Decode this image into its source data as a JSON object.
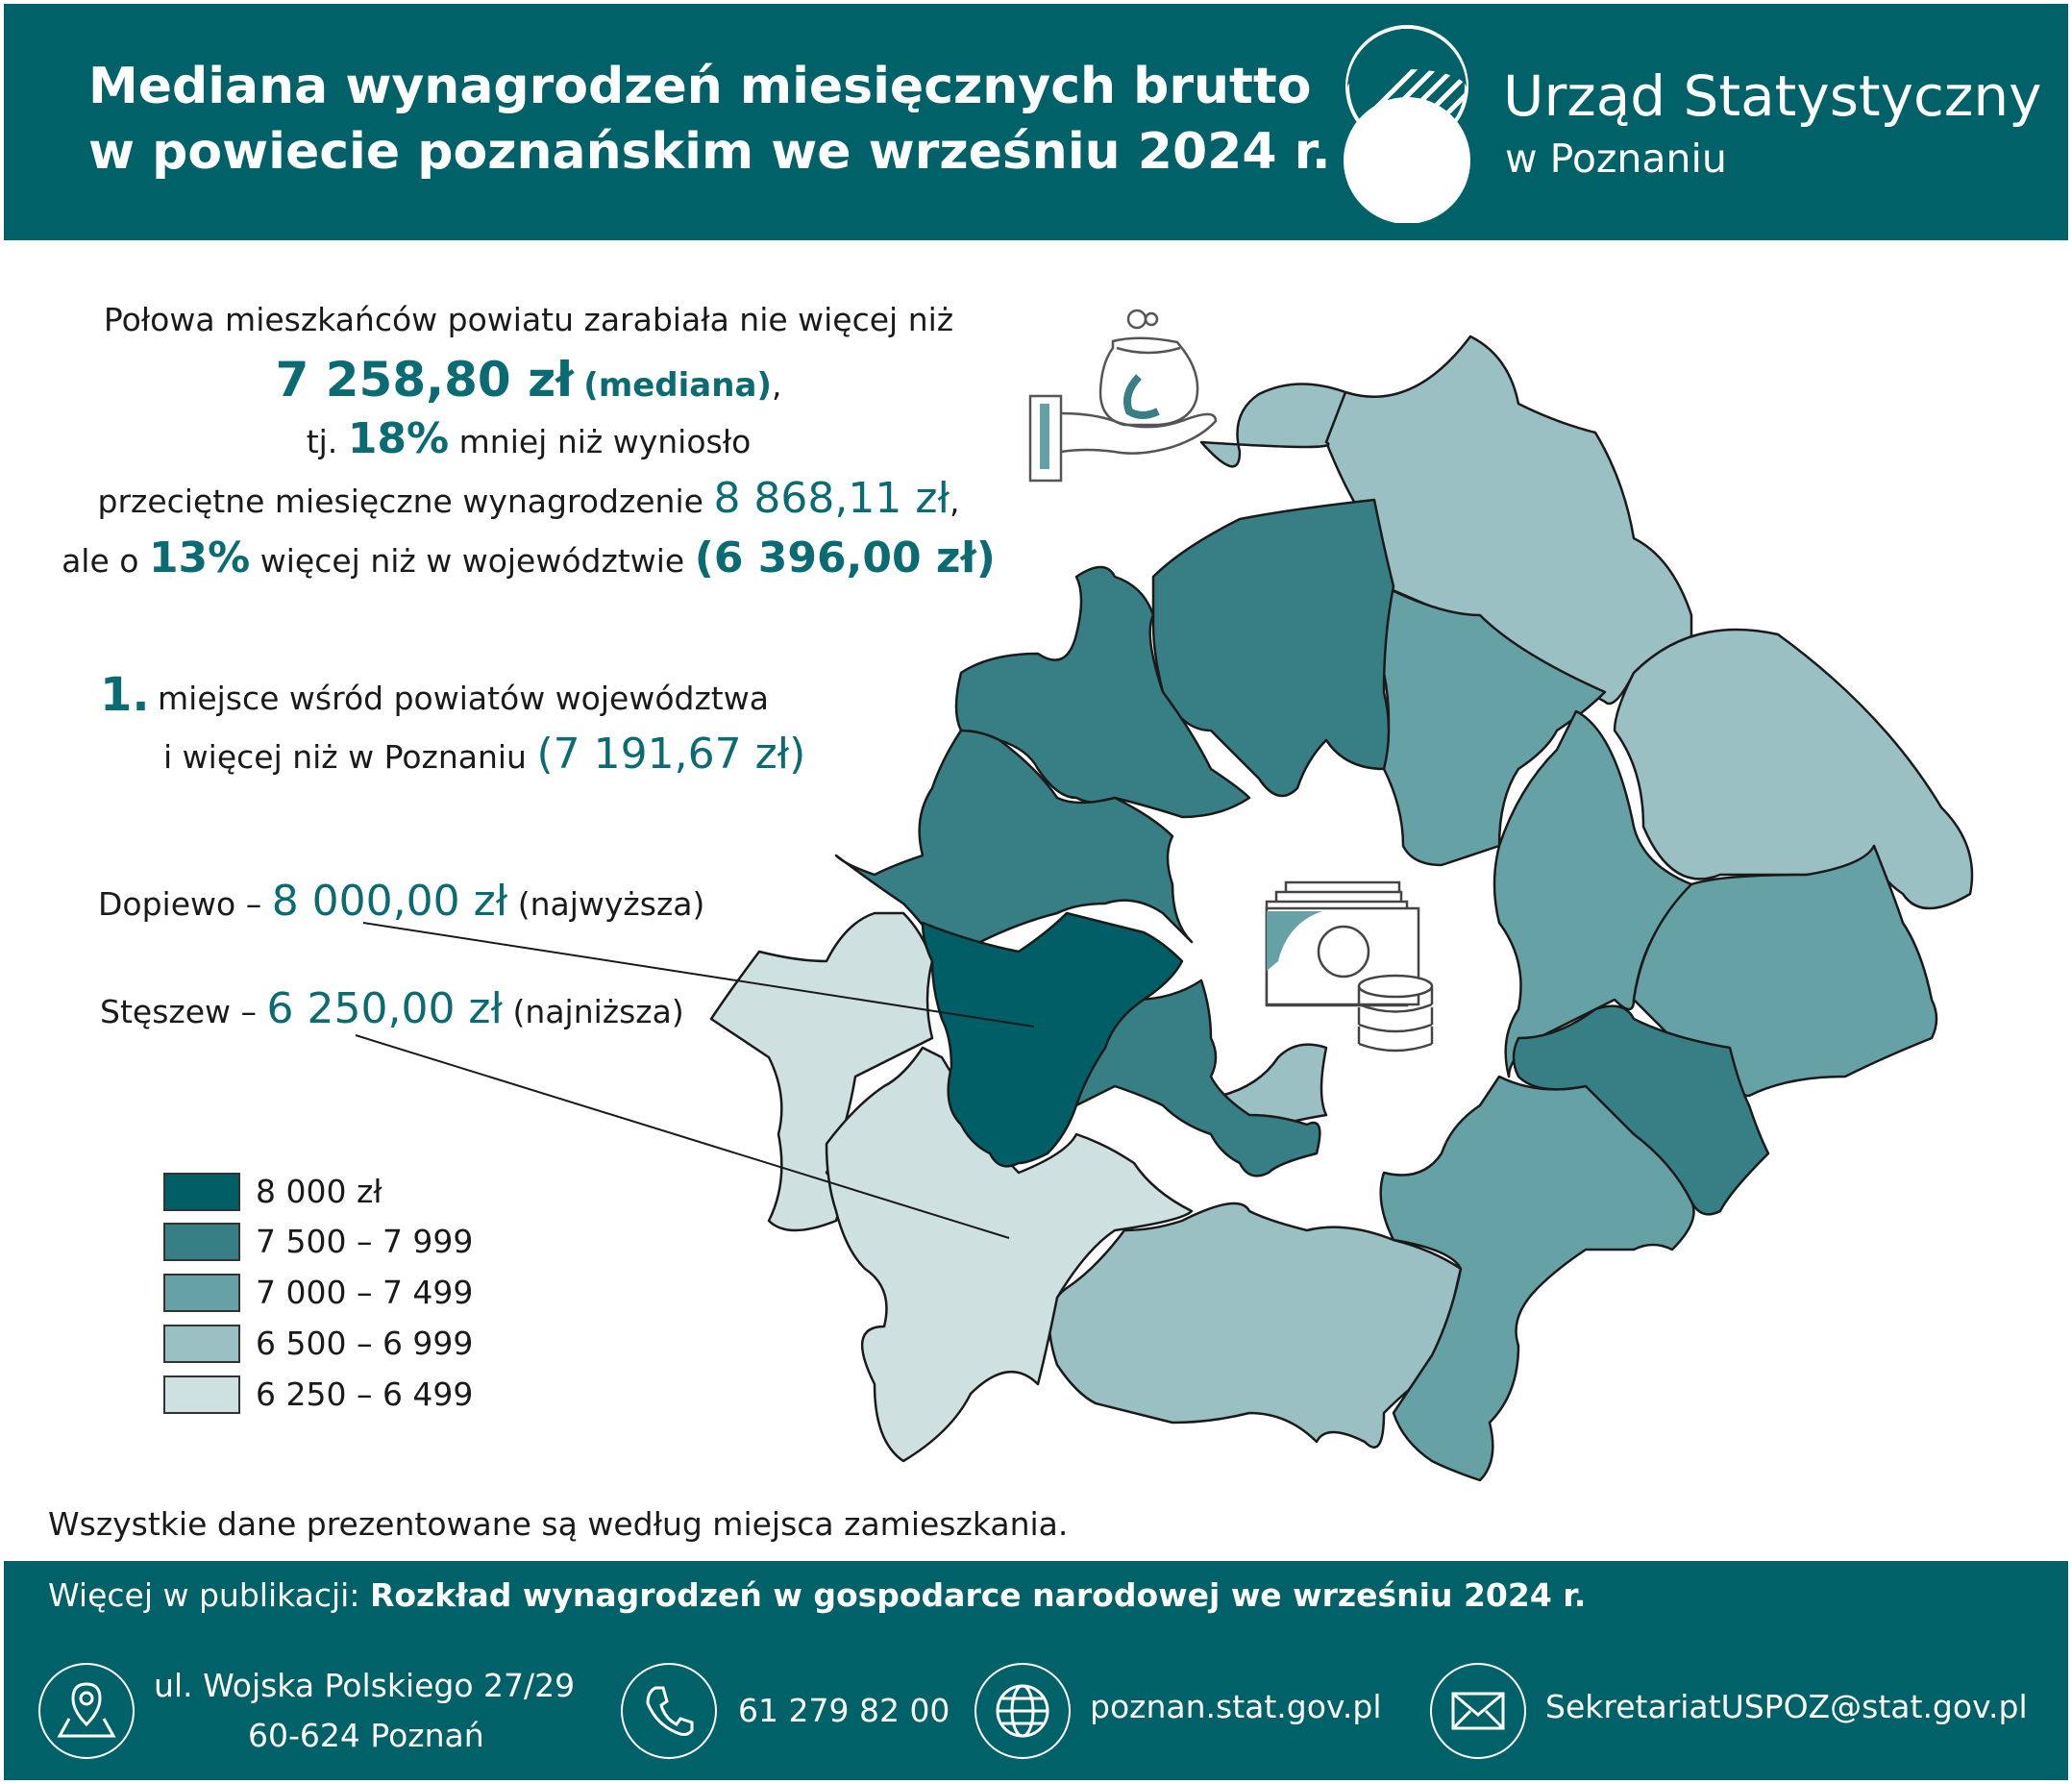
{
  "header": {
    "title_line1": "Mediana wynagrodzeń miesięcznych brutto",
    "title_line2": "w powiecie poznańskim we wrześniu 2024 r.",
    "logo_name": "Urząd Statystyczny",
    "logo_sub": "w Poznaniu"
  },
  "summary": {
    "line1": "Połowa mieszkańców powiatu zarabiała nie więcej niż",
    "median_value": "7 258,80 zł",
    "median_label": "(mediana)",
    "comma": ",",
    "line3_pre": "tj.",
    "pct_less": "18%",
    "line3_post": "mniej niż wyniosło",
    "line4_pre": "przeciętne miesięczne wynagrodzenie",
    "avg_value": "8 868,11 zł",
    "line5_pre": "ale o",
    "pct_more": "13%",
    "line5_post": "więcej niż w województwie",
    "voiv_value": "(6 396,00 zł)"
  },
  "rank": {
    "number": "1.",
    "line1": "miejsce wśród powiatów województwa",
    "line2_pre": "i więcej niż w Poznaniu",
    "poznan_value": "(7 191,67 zł)"
  },
  "highlights": {
    "dopiewo_name": "Dopiewo –",
    "dopiewo_value": "8 000,00 zł",
    "dopiewo_note": "(najwyższa)",
    "steszew_name": "Stęszew –",
    "steszew_value": "6 250,00 zł",
    "steszew_note": "(najniższa)"
  },
  "legend": [
    {
      "label": "8 000 zł",
      "color": "#005f66"
    },
    {
      "label": "7 500 – 7 999",
      "color": "#377f85"
    },
    {
      "label": "7 000 – 7 499",
      "color": "#66a1a5"
    },
    {
      "label": "6 500 – 6 999",
      "color": "#9bc0c3"
    },
    {
      "label": "6 250 – 6 499",
      "color": "#cfe0e1"
    }
  ],
  "note": "Wszystkie dane prezentowane są według miejsca zamieszkania.",
  "footer": {
    "pub_pre": "Więcej w publikacji:",
    "pub_title": "Rozkład wynagrodzeń w gospodarce narodowej we wrześniu 2024 r.",
    "address_line1": "ul. Wojska Polskiego 27/29",
    "address_line2": "60-624 Poznań",
    "phone": "61 279 82 00",
    "website": "poznan.stat.gov.pl",
    "email": "SekretariatUSPOZ@stat.gov.pl"
  },
  "icons": [
    "location-pin-icon",
    "phone-icon",
    "globe-icon",
    "envelope-icon",
    "money-hand-icon",
    "banknotes-coins-icon"
  ]
}
